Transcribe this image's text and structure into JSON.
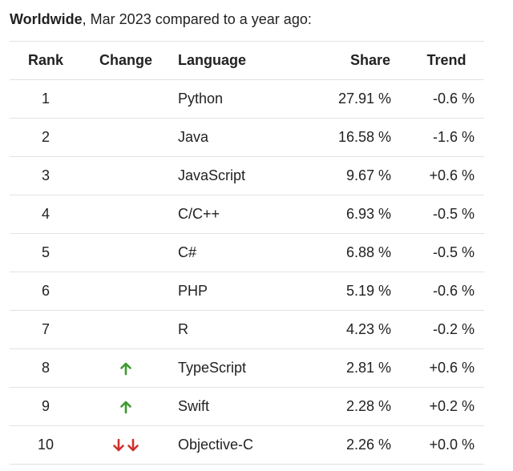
{
  "header": {
    "bold": "Worldwide",
    "rest": ", Mar 2023 compared to a year ago:"
  },
  "table": {
    "columns": [
      "Rank",
      "Change",
      "Language",
      "Share",
      "Trend"
    ],
    "rows": [
      {
        "rank": "1",
        "change": [],
        "language": "Python",
        "share": "27.91 %",
        "trend": "-0.6 %"
      },
      {
        "rank": "2",
        "change": [],
        "language": "Java",
        "share": "16.58 %",
        "trend": "-1.6 %"
      },
      {
        "rank": "3",
        "change": [],
        "language": "JavaScript",
        "share": "9.67 %",
        "trend": "+0.6 %"
      },
      {
        "rank": "4",
        "change": [],
        "language": "C/C++",
        "share": "6.93 %",
        "trend": "-0.5 %"
      },
      {
        "rank": "5",
        "change": [],
        "language": "C#",
        "share": "6.88 %",
        "trend": "-0.5 %"
      },
      {
        "rank": "6",
        "change": [],
        "language": "PHP",
        "share": "5.19 %",
        "trend": "-0.6 %"
      },
      {
        "rank": "7",
        "change": [],
        "language": "R",
        "share": "4.23 %",
        "trend": "-0.2 %"
      },
      {
        "rank": "8",
        "change": [
          "up"
        ],
        "language": "TypeScript",
        "share": "2.81 %",
        "trend": "+0.6 %"
      },
      {
        "rank": "9",
        "change": [
          "up"
        ],
        "language": "Swift",
        "share": "2.28 %",
        "trend": "+0.2 %"
      },
      {
        "rank": "10",
        "change": [
          "down",
          "down"
        ],
        "language": "Objective-C",
        "share": "2.26 %",
        "trend": "+0.0 %"
      }
    ]
  },
  "icons": {
    "up": {
      "name": "arrow-up-icon",
      "color": "#3c9a2e"
    },
    "down": {
      "name": "arrow-down-icon",
      "color": "#d0312d"
    }
  }
}
